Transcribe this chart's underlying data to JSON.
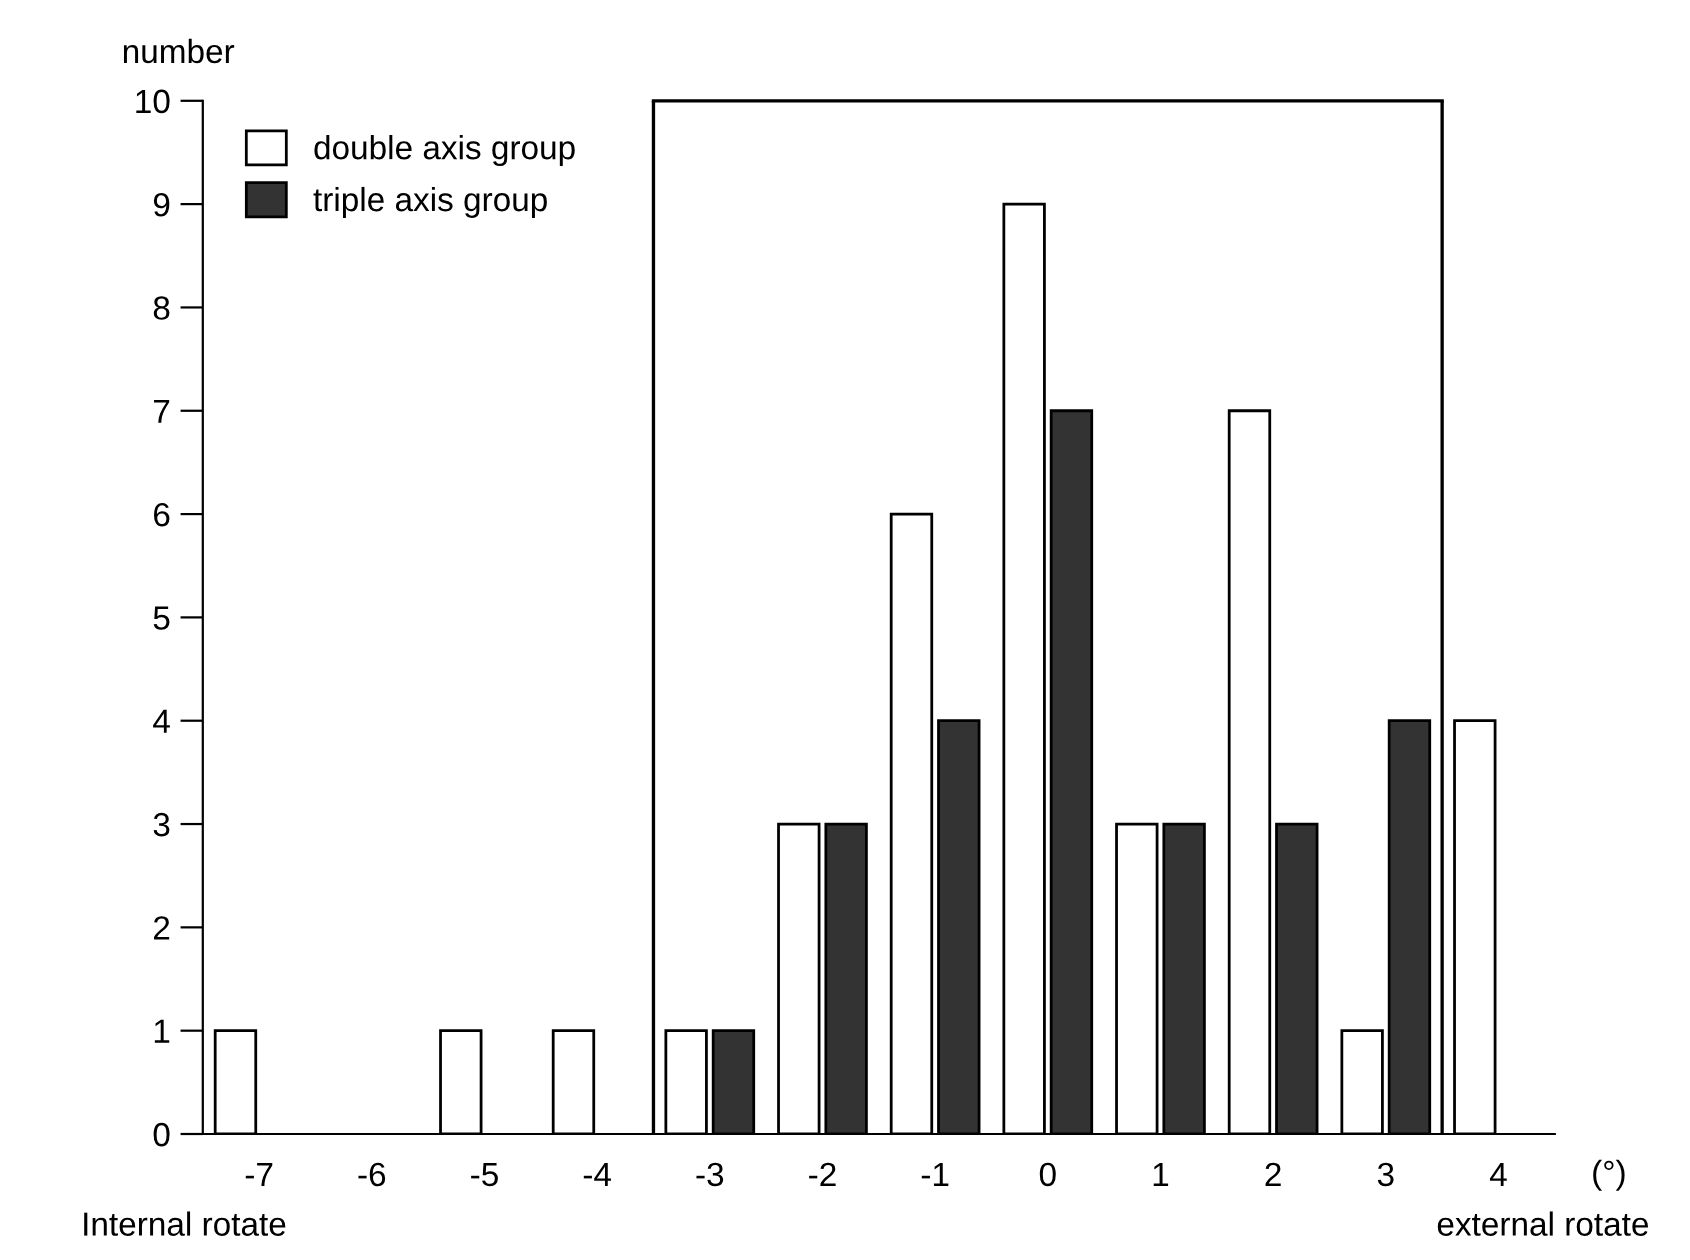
{
  "chart_data": {
    "type": "bar",
    "ylabel": "number",
    "xlabel": "(°)",
    "x": [
      -7,
      -6,
      -5,
      -4,
      -3,
      -2,
      -1,
      0,
      1,
      2,
      3,
      4
    ],
    "xlim": [
      -7.5,
      4.5
    ],
    "xticks": [
      -7,
      -6,
      -5,
      -4,
      -3,
      -2,
      -1,
      0,
      1,
      2,
      3,
      4
    ],
    "ylim": [
      0,
      10
    ],
    "yticks": [
      0,
      1,
      2,
      3,
      4,
      5,
      6,
      7,
      8,
      9,
      10
    ],
    "series": [
      {
        "name": "double axis group",
        "color": "#ffffff",
        "values": [
          1,
          null,
          1,
          1,
          1,
          3,
          6,
          9,
          3,
          7,
          1,
          4
        ]
      },
      {
        "name": "triple axis group",
        "color": "#333333",
        "values": [
          null,
          null,
          null,
          null,
          1,
          3,
          4,
          7,
          3,
          3,
          4,
          null
        ]
      }
    ],
    "ref_lines": [
      {
        "axis": "x",
        "value": -3.5,
        "label": null,
        "color": "#000000",
        "line_style": "solid"
      },
      {
        "axis": "x",
        "value": 3.5,
        "label": null,
        "color": "#000000",
        "line_style": "solid"
      }
    ],
    "annotations": [
      "Internal rotate",
      "external rotate"
    ],
    "grid": false,
    "legend": "top left"
  }
}
